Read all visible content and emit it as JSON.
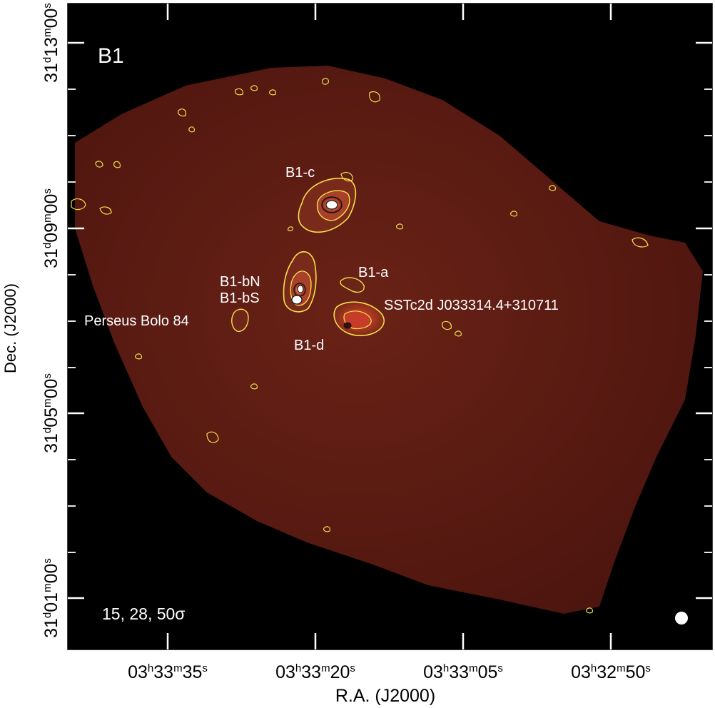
{
  "panel_label": "B1",
  "contour_note": "15, 28, 50σ",
  "source_labels": {
    "b1c": "B1-c",
    "b1bn": "B1-bN",
    "b1bs": "B1-bS",
    "b1a": "B1-a",
    "b1d": "B1-d",
    "bolo84": "Perseus Bolo 84",
    "sstc2d": "SSTc2d J033314.4+310711"
  },
  "axes": {
    "x_title": "R.A. (J2000)",
    "y_title": "Dec. (J2000)",
    "x_ticks": [
      {
        "h": "03",
        "m": "33",
        "s": "35"
      },
      {
        "h": "03",
        "m": "33",
        "s": "20"
      },
      {
        "h": "03",
        "m": "33",
        "s": "05"
      },
      {
        "h": "03",
        "m": "32",
        "s": "50"
      }
    ],
    "y_ticks": [
      {
        "d": "31",
        "m": "13",
        "s": "00"
      },
      {
        "d": "31",
        "m": "09",
        "s": "00"
      },
      {
        "d": "31",
        "m": "05",
        "s": "00"
      },
      {
        "d": "31",
        "m": "01",
        "s": "00"
      }
    ],
    "units": {
      "h": "h",
      "m": "m",
      "s": "s",
      "d": "d"
    }
  },
  "colors": {
    "background": "#000000",
    "map": "#5a1a12",
    "contour": "#f5e04a",
    "inner_contour": "#111111",
    "peak": "#ffffff"
  }
}
